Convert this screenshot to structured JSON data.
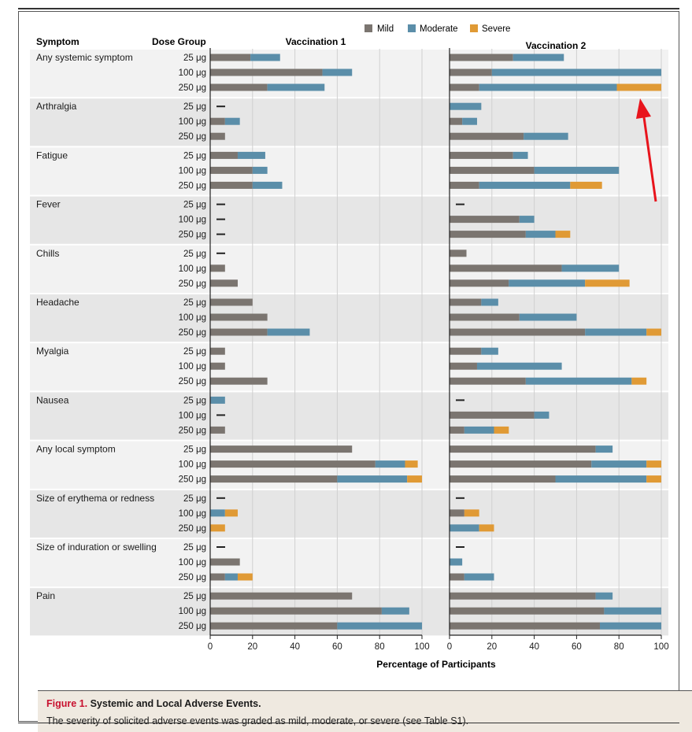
{
  "figure": {
    "label": "Figure 1.",
    "title": "Systemic and Local Adverse Events.",
    "caption": "The severity of solicited adverse events was graded as mild, moderate, or severe (see Table S1)."
  },
  "headers": {
    "symptom": "Symptom",
    "dose_group": "Dose Group",
    "vac1": "Vaccination 1",
    "vac2": "Vaccination 2"
  },
  "colors": {
    "mild": "#7b7570",
    "moderate": "#5b8ea9",
    "severe": "#e09a35",
    "band": "#e6e6e6",
    "band_alt": "#f2f2f2"
  },
  "chart_data": {
    "type": "bar",
    "orientation": "horizontal",
    "stacked": true,
    "xlabel": "Percentage of Participants",
    "xlim": [
      0,
      100
    ],
    "xticks": [
      0,
      20,
      40,
      60,
      80,
      100
    ],
    "legend": [
      "Mild",
      "Moderate",
      "Severe"
    ],
    "legend_position": "top-right",
    "doses": [
      "25 μg",
      "100 μg",
      "250 μg"
    ],
    "panels": [
      {
        "name": "Vaccination 1",
        "groups": [
          {
            "symptom": "Any systemic symptom",
            "rows": [
              {
                "dose": "25 μg",
                "mild": 19,
                "moderate": 14,
                "severe": 0
              },
              {
                "dose": "100 μg",
                "mild": 53,
                "moderate": 14,
                "severe": 0
              },
              {
                "dose": "250 μg",
                "mild": 27,
                "moderate": 27,
                "severe": 0
              }
            ]
          },
          {
            "symptom": "Arthralgia",
            "rows": [
              {
                "dose": "25 μg",
                "mild": 0,
                "moderate": 0,
                "severe": 0
              },
              {
                "dose": "100 μg",
                "mild": 7,
                "moderate": 7,
                "severe": 0
              },
              {
                "dose": "250 μg",
                "mild": 7,
                "moderate": 0,
                "severe": 0
              }
            ]
          },
          {
            "symptom": "Fatigue",
            "rows": [
              {
                "dose": "25 μg",
                "mild": 13,
                "moderate": 13,
                "severe": 0
              },
              {
                "dose": "100 μg",
                "mild": 20,
                "moderate": 7,
                "severe": 0
              },
              {
                "dose": "250 μg",
                "mild": 20,
                "moderate": 14,
                "severe": 0
              }
            ]
          },
          {
            "symptom": "Fever",
            "rows": [
              {
                "dose": "25 μg",
                "mild": 0,
                "moderate": 0,
                "severe": 0
              },
              {
                "dose": "100 μg",
                "mild": 0,
                "moderate": 0,
                "severe": 0
              },
              {
                "dose": "250 μg",
                "mild": 0,
                "moderate": 0,
                "severe": 0
              }
            ]
          },
          {
            "symptom": "Chills",
            "rows": [
              {
                "dose": "25 μg",
                "mild": 0,
                "moderate": 0,
                "severe": 0
              },
              {
                "dose": "100 μg",
                "mild": 7,
                "moderate": 0,
                "severe": 0
              },
              {
                "dose": "250 μg",
                "mild": 13,
                "moderate": 0,
                "severe": 0
              }
            ]
          },
          {
            "symptom": "Headache",
            "rows": [
              {
                "dose": "25 μg",
                "mild": 20,
                "moderate": 0,
                "severe": 0
              },
              {
                "dose": "100 μg",
                "mild": 27,
                "moderate": 0,
                "severe": 0
              },
              {
                "dose": "250 μg",
                "mild": 27,
                "moderate": 20,
                "severe": 0
              }
            ]
          },
          {
            "symptom": "Myalgia",
            "rows": [
              {
                "dose": "25 μg",
                "mild": 7,
                "moderate": 0,
                "severe": 0
              },
              {
                "dose": "100 μg",
                "mild": 7,
                "moderate": 0,
                "severe": 0
              },
              {
                "dose": "250 μg",
                "mild": 27,
                "moderate": 0,
                "severe": 0
              }
            ]
          },
          {
            "symptom": "Nausea",
            "rows": [
              {
                "dose": "25 μg",
                "mild": 0,
                "moderate": 7,
                "severe": 0
              },
              {
                "dose": "100 μg",
                "mild": 0,
                "moderate": 0,
                "severe": 0
              },
              {
                "dose": "250 μg",
                "mild": 7,
                "moderate": 0,
                "severe": 0
              }
            ]
          },
          {
            "symptom": "Any local symptom",
            "rows": [
              {
                "dose": "25 μg",
                "mild": 67,
                "moderate": 0,
                "severe": 0
              },
              {
                "dose": "100 μg",
                "mild": 78,
                "moderate": 14,
                "severe": 6
              },
              {
                "dose": "250 μg",
                "mild": 60,
                "moderate": 33,
                "severe": 7
              }
            ]
          },
          {
            "symptom": "Size of erythema or redness",
            "rows": [
              {
                "dose": "25 μg",
                "mild": 0,
                "moderate": 0,
                "severe": 0
              },
              {
                "dose": "100 μg",
                "mild": 0,
                "moderate": 7,
                "severe": 6
              },
              {
                "dose": "250 μg",
                "mild": 0,
                "moderate": 0,
                "severe": 7
              }
            ]
          },
          {
            "symptom": "Size of induration or swelling",
            "rows": [
              {
                "dose": "25 μg",
                "mild": 0,
                "moderate": 0,
                "severe": 0
              },
              {
                "dose": "100 μg",
                "mild": 14,
                "moderate": 0,
                "severe": 0
              },
              {
                "dose": "250 μg",
                "mild": 7,
                "moderate": 6,
                "severe": 7
              }
            ]
          },
          {
            "symptom": "Pain",
            "rows": [
              {
                "dose": "25 μg",
                "mild": 67,
                "moderate": 0,
                "severe": 0
              },
              {
                "dose": "100 μg",
                "mild": 81,
                "moderate": 13,
                "severe": 0
              },
              {
                "dose": "250 μg",
                "mild": 60,
                "moderate": 40,
                "severe": 0
              }
            ]
          }
        ]
      },
      {
        "name": "Vaccination 2",
        "groups": [
          {
            "symptom": "Any systemic symptom",
            "rows": [
              {
                "dose": "25 μg",
                "mild": 30,
                "moderate": 24,
                "severe": 0
              },
              {
                "dose": "100 μg",
                "mild": 20,
                "moderate": 80,
                "severe": 0
              },
              {
                "dose": "250 μg",
                "mild": 14,
                "moderate": 65,
                "severe": 21
              }
            ]
          },
          {
            "symptom": "Arthralgia",
            "rows": [
              {
                "dose": "25 μg",
                "mild": 0,
                "moderate": 15,
                "severe": 0
              },
              {
                "dose": "100 μg",
                "mild": 6,
                "moderate": 7,
                "severe": 0
              },
              {
                "dose": "250 μg",
                "mild": 35,
                "moderate": 21,
                "severe": 0
              }
            ]
          },
          {
            "symptom": "Fatigue",
            "rows": [
              {
                "dose": "25 μg",
                "mild": 30,
                "moderate": 7,
                "severe": 0
              },
              {
                "dose": "100 μg",
                "mild": 40,
                "moderate": 40,
                "severe": 0
              },
              {
                "dose": "250 μg",
                "mild": 14,
                "moderate": 43,
                "severe": 15
              }
            ]
          },
          {
            "symptom": "Fever",
            "rows": [
              {
                "dose": "25 μg",
                "mild": 0,
                "moderate": 0,
                "severe": 0
              },
              {
                "dose": "100 μg",
                "mild": 33,
                "moderate": 7,
                "severe": 0
              },
              {
                "dose": "250 μg",
                "mild": 36,
                "moderate": 14,
                "severe": 7
              }
            ]
          },
          {
            "symptom": "Chills",
            "rows": [
              {
                "dose": "25 μg",
                "mild": 8,
                "moderate": 0,
                "severe": 0
              },
              {
                "dose": "100 μg",
                "mild": 53,
                "moderate": 27,
                "severe": 0
              },
              {
                "dose": "250 μg",
                "mild": 28,
                "moderate": 36,
                "severe": 21
              }
            ]
          },
          {
            "symptom": "Headache",
            "rows": [
              {
                "dose": "25 μg",
                "mild": 15,
                "moderate": 8,
                "severe": 0
              },
              {
                "dose": "100 μg",
                "mild": 33,
                "moderate": 27,
                "severe": 0
              },
              {
                "dose": "250 μg",
                "mild": 64,
                "moderate": 29,
                "severe": 7
              }
            ]
          },
          {
            "symptom": "Myalgia",
            "rows": [
              {
                "dose": "25 μg",
                "mild": 15,
                "moderate": 8,
                "severe": 0
              },
              {
                "dose": "100 μg",
                "mild": 13,
                "moderate": 40,
                "severe": 0
              },
              {
                "dose": "250 μg",
                "mild": 36,
                "moderate": 50,
                "severe": 7
              }
            ]
          },
          {
            "symptom": "Nausea",
            "rows": [
              {
                "dose": "25 μg",
                "mild": 0,
                "moderate": 0,
                "severe": 0
              },
              {
                "dose": "100 μg",
                "mild": 40,
                "moderate": 7,
                "severe": 0
              },
              {
                "dose": "250 μg",
                "mild": 7,
                "moderate": 14,
                "severe": 7
              }
            ]
          },
          {
            "symptom": "Any local symptom",
            "rows": [
              {
                "dose": "25 μg",
                "mild": 69,
                "moderate": 8,
                "severe": 0
              },
              {
                "dose": "100 μg",
                "mild": 67,
                "moderate": 26,
                "severe": 7
              },
              {
                "dose": "250 μg",
                "mild": 50,
                "moderate": 43,
                "severe": 7
              }
            ]
          },
          {
            "symptom": "Size of erythema or redness",
            "rows": [
              {
                "dose": "25 μg",
                "mild": 0,
                "moderate": 0,
                "severe": 0
              },
              {
                "dose": "100 μg",
                "mild": 7,
                "moderate": 0,
                "severe": 7
              },
              {
                "dose": "250 μg",
                "mild": 0,
                "moderate": 14,
                "severe": 7
              }
            ]
          },
          {
            "symptom": "Size of induration or swelling",
            "rows": [
              {
                "dose": "25 μg",
                "mild": 0,
                "moderate": 0,
                "severe": 0
              },
              {
                "dose": "100 μg",
                "mild": 0,
                "moderate": 6,
                "severe": 0
              },
              {
                "dose": "250 μg",
                "mild": 7,
                "moderate": 14,
                "severe": 0
              }
            ]
          },
          {
            "symptom": "Pain",
            "rows": [
              {
                "dose": "25 μg",
                "mild": 69,
                "moderate": 8,
                "severe": 0
              },
              {
                "dose": "100 μg",
                "mild": 73,
                "moderate": 27,
                "severe": 0
              },
              {
                "dose": "250 μg",
                "mild": 71,
                "moderate": 29,
                "severe": 0
              }
            ]
          }
        ]
      }
    ],
    "annotation": "red arrow pointing to severe segment of Any systemic symptom, 250 μg, Vaccination 2"
  }
}
